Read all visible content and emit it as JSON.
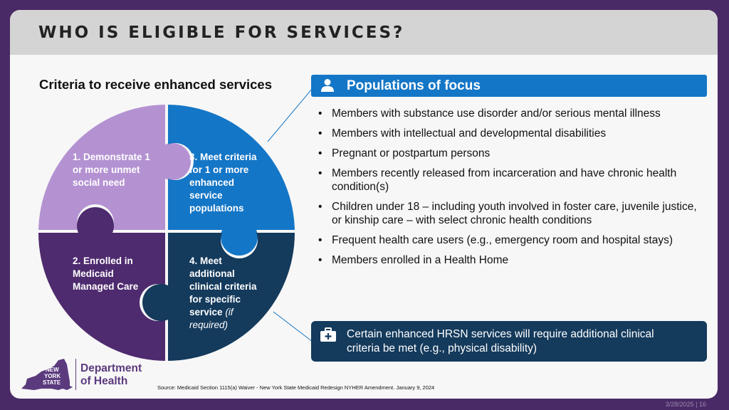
{
  "slide": {
    "title": "WHO IS ELIGIBLE FOR SERVICES?",
    "subtitle": "Criteria to receive enhanced services"
  },
  "puzzle": {
    "piece1": {
      "text": "1. Demonstrate 1 or more unmet social need",
      "color": "#b492d2"
    },
    "piece2": {
      "text": "2. Enrolled in Medicaid Managed Care",
      "color": "#4e2a6e"
    },
    "piece3": {
      "text": "3. Meet criteria for 1 or more enhanced service populations",
      "color": "#1476c6"
    },
    "piece4": {
      "text": "4. Meet additional clinical criteria for specific service",
      "note": "(if required)",
      "color": "#143a5c"
    }
  },
  "populations": {
    "icon": "person-icon",
    "title": "Populations of focus",
    "items": [
      "Members with substance use disorder and/or serious mental illness",
      "Members with intellectual and developmental disabilities",
      "Pregnant or postpartum persons",
      "Members recently released from incarceration and have chronic health condition(s)",
      "Children under 18 – including youth involved in foster care, juvenile justice, or kinship care – with select chronic health conditions",
      "Frequent health care users (e.g., emergency room and hospital stays)",
      "Members enrolled in a Health Home"
    ]
  },
  "note": {
    "icon": "medical-kit-icon",
    "text": "Certain enhanced HRSN services will require additional clinical criteria be met (e.g., physical disability)"
  },
  "logo": {
    "state_line1": "NEW",
    "state_line2": "YORK",
    "state_line3": "STATE",
    "dept_line1": "Department",
    "dept_line2": "of Health"
  },
  "source": "Source: Medicaid Section 1115(a) Waiver - New York State Medicaid Redesign NYHER Amendment. January 9, 2024",
  "footer": "3/28/2025 | 16"
}
